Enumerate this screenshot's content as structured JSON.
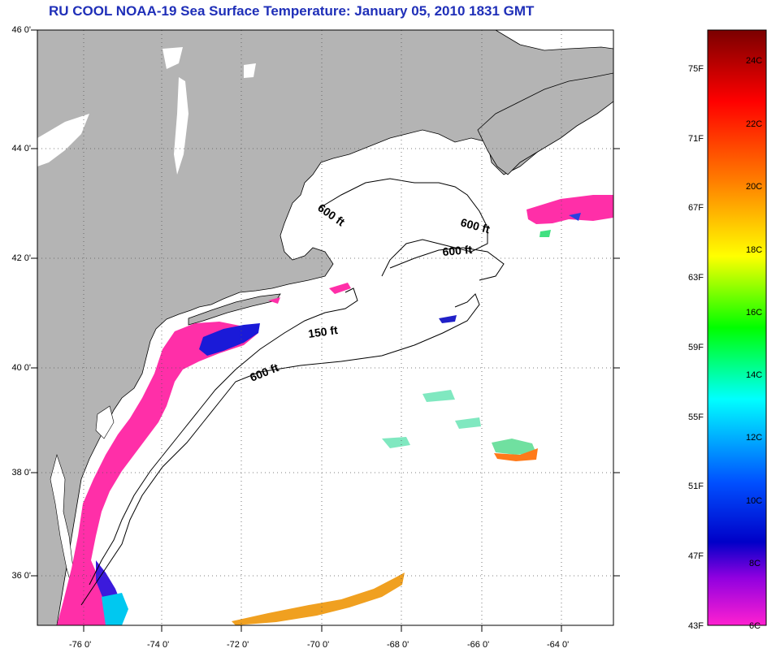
{
  "title": "RU COOL  NOAA-19  Sea Surface Temperature:  January 05, 2010 1831 GMT",
  "lat_labels": [
    "46 0'",
    "44 0'",
    "42 0'",
    "40 0'",
    "38 0'",
    "36 0'"
  ],
  "lon_labels": [
    "-76 0'",
    "-74 0'",
    "-72 0'",
    "-70 0'",
    "-68 0'",
    "-66 0'",
    "-64 0'"
  ],
  "isobath_labels": [
    "600 ft",
    "600 ft",
    "600 ft",
    "150 ft",
    "600 ft"
  ],
  "colorbar": {
    "fahrenheit": [
      "75F",
      "71F",
      "67F",
      "63F",
      "59F",
      "55F",
      "51F",
      "47F",
      "43F"
    ],
    "celsius": [
      "24C",
      "22C",
      "20C",
      "18C",
      "16C",
      "14C",
      "12C",
      "10C",
      "8C",
      "6C"
    ],
    "colors": [
      "#8b0000",
      "#ff0000",
      "#ff8c00",
      "#ffff00",
      "#00ff00",
      "#00ffff",
      "#0000ff",
      "#8000ff",
      "#ff00ff"
    ]
  },
  "colors": {
    "land": "#b4b4b4",
    "ocean": "#ffffff",
    "title": "#1f2fb8",
    "shelf_cold": "#ff2fa8",
    "cold_core": "#1a1ad8"
  }
}
